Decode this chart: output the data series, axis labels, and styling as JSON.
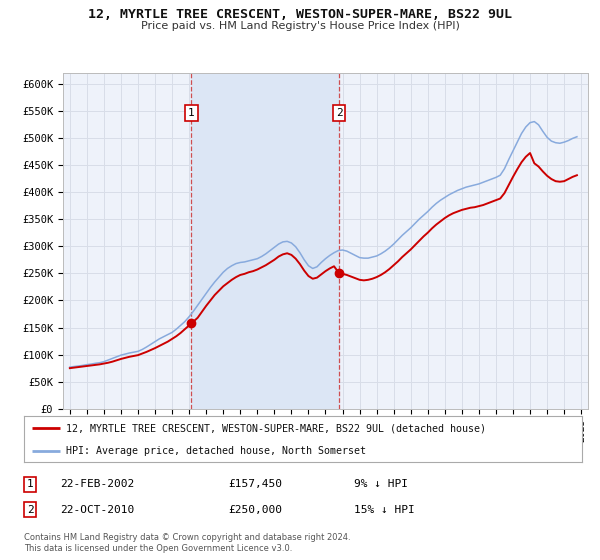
{
  "title": "12, MYRTLE TREE CRESCENT, WESTON-SUPER-MARE, BS22 9UL",
  "subtitle": "Price paid vs. HM Land Registry's House Price Index (HPI)",
  "background_color": "#ffffff",
  "plot_bg_color": "#eef2fa",
  "grid_color": "#d8dde8",
  "red_line_color": "#cc0000",
  "blue_line_color": "#88aadd",
  "sale1_price": 157450,
  "sale1_year": 2002.13,
  "sale2_price": 250000,
  "sale2_year": 2010.8,
  "vline_color": "#cc3333",
  "shade_color": "#dce6f5",
  "ylim": [
    0,
    620000
  ],
  "yticks": [
    0,
    50000,
    100000,
    150000,
    200000,
    250000,
    300000,
    350000,
    400000,
    450000,
    500000,
    550000,
    600000
  ],
  "ytick_labels": [
    "£0",
    "£50K",
    "£100K",
    "£150K",
    "£200K",
    "£250K",
    "£300K",
    "£350K",
    "£400K",
    "£450K",
    "£500K",
    "£550K",
    "£600K"
  ],
  "hpi_data": [
    [
      1995.0,
      77000
    ],
    [
      1995.25,
      78000
    ],
    [
      1995.5,
      79000
    ],
    [
      1995.75,
      80000
    ],
    [
      1996.0,
      81500
    ],
    [
      1996.25,
      82500
    ],
    [
      1996.5,
      84000
    ],
    [
      1996.75,
      85000
    ],
    [
      1997.0,
      87000
    ],
    [
      1997.25,
      90000
    ],
    [
      1997.5,
      93000
    ],
    [
      1997.75,
      96000
    ],
    [
      1998.0,
      99000
    ],
    [
      1998.25,
      101000
    ],
    [
      1998.5,
      103000
    ],
    [
      1998.75,
      104500
    ],
    [
      1999.0,
      106000
    ],
    [
      1999.25,
      109500
    ],
    [
      1999.5,
      114000
    ],
    [
      1999.75,
      119000
    ],
    [
      2000.0,
      124000
    ],
    [
      2000.25,
      129000
    ],
    [
      2000.5,
      133000
    ],
    [
      2000.75,
      137000
    ],
    [
      2001.0,
      141000
    ],
    [
      2001.25,
      147000
    ],
    [
      2001.5,
      154000
    ],
    [
      2001.75,
      161000
    ],
    [
      2002.0,
      170000
    ],
    [
      2002.25,
      180000
    ],
    [
      2002.5,
      191000
    ],
    [
      2002.75,
      202000
    ],
    [
      2003.0,
      213000
    ],
    [
      2003.25,
      224000
    ],
    [
      2003.5,
      234000
    ],
    [
      2003.75,
      243000
    ],
    [
      2004.0,
      252000
    ],
    [
      2004.25,
      259000
    ],
    [
      2004.5,
      264000
    ],
    [
      2004.75,
      268000
    ],
    [
      2005.0,
      270000
    ],
    [
      2005.25,
      271000
    ],
    [
      2005.5,
      273000
    ],
    [
      2005.75,
      275000
    ],
    [
      2006.0,
      277000
    ],
    [
      2006.25,
      281000
    ],
    [
      2006.5,
      286000
    ],
    [
      2006.75,
      292000
    ],
    [
      2007.0,
      298000
    ],
    [
      2007.25,
      304000
    ],
    [
      2007.5,
      308000
    ],
    [
      2007.75,
      309000
    ],
    [
      2008.0,
      306000
    ],
    [
      2008.25,
      299000
    ],
    [
      2008.5,
      288000
    ],
    [
      2008.75,
      275000
    ],
    [
      2009.0,
      264000
    ],
    [
      2009.25,
      259000
    ],
    [
      2009.5,
      262000
    ],
    [
      2009.75,
      270000
    ],
    [
      2010.0,
      277000
    ],
    [
      2010.25,
      283000
    ],
    [
      2010.5,
      288000
    ],
    [
      2010.75,
      292000
    ],
    [
      2011.0,
      293000
    ],
    [
      2011.25,
      291000
    ],
    [
      2011.5,
      287000
    ],
    [
      2011.75,
      283000
    ],
    [
      2012.0,
      279000
    ],
    [
      2012.25,
      278000
    ],
    [
      2012.5,
      278000
    ],
    [
      2012.75,
      280000
    ],
    [
      2013.0,
      282000
    ],
    [
      2013.25,
      286000
    ],
    [
      2013.5,
      291000
    ],
    [
      2013.75,
      297000
    ],
    [
      2014.0,
      304000
    ],
    [
      2014.25,
      312000
    ],
    [
      2014.5,
      320000
    ],
    [
      2014.75,
      327000
    ],
    [
      2015.0,
      334000
    ],
    [
      2015.25,
      342000
    ],
    [
      2015.5,
      350000
    ],
    [
      2015.75,
      357000
    ],
    [
      2016.0,
      364000
    ],
    [
      2016.25,
      372000
    ],
    [
      2016.5,
      379000
    ],
    [
      2016.75,
      385000
    ],
    [
      2017.0,
      390000
    ],
    [
      2017.25,
      395000
    ],
    [
      2017.5,
      399000
    ],
    [
      2017.75,
      403000
    ],
    [
      2018.0,
      406000
    ],
    [
      2018.25,
      409000
    ],
    [
      2018.5,
      411000
    ],
    [
      2018.75,
      413000
    ],
    [
      2019.0,
      415000
    ],
    [
      2019.25,
      418000
    ],
    [
      2019.5,
      421000
    ],
    [
      2019.75,
      424000
    ],
    [
      2020.0,
      427000
    ],
    [
      2020.25,
      431000
    ],
    [
      2020.5,
      443000
    ],
    [
      2020.75,
      460000
    ],
    [
      2021.0,
      476000
    ],
    [
      2021.25,
      492000
    ],
    [
      2021.5,
      508000
    ],
    [
      2021.75,
      520000
    ],
    [
      2022.0,
      528000
    ],
    [
      2022.25,
      530000
    ],
    [
      2022.5,
      524000
    ],
    [
      2022.75,
      512000
    ],
    [
      2023.0,
      501000
    ],
    [
      2023.25,
      494000
    ],
    [
      2023.5,
      491000
    ],
    [
      2023.75,
      490000
    ],
    [
      2024.0,
      492000
    ],
    [
      2024.25,
      495000
    ],
    [
      2024.5,
      499000
    ],
    [
      2024.75,
      502000
    ]
  ],
  "house_data": [
    [
      1995.0,
      75000
    ],
    [
      1995.25,
      76000
    ],
    [
      1995.5,
      77000
    ],
    [
      1995.75,
      78000
    ],
    [
      1996.0,
      79000
    ],
    [
      1996.25,
      80000
    ],
    [
      1996.5,
      81000
    ],
    [
      1996.75,
      82000
    ],
    [
      1997.0,
      83500
    ],
    [
      1997.25,
      85000
    ],
    [
      1997.5,
      87000
    ],
    [
      1997.75,
      89500
    ],
    [
      1998.0,
      92000
    ],
    [
      1998.25,
      94000
    ],
    [
      1998.5,
      96000
    ],
    [
      1998.75,
      97500
    ],
    [
      1999.0,
      99000
    ],
    [
      1999.25,
      102000
    ],
    [
      1999.5,
      105000
    ],
    [
      1999.75,
      108500
    ],
    [
      2000.0,
      112000
    ],
    [
      2000.25,
      116000
    ],
    [
      2000.5,
      120000
    ],
    [
      2000.75,
      124000
    ],
    [
      2001.0,
      129000
    ],
    [
      2001.25,
      134000
    ],
    [
      2001.5,
      140000
    ],
    [
      2001.75,
      147000
    ],
    [
      2002.13,
      157450
    ],
    [
      2002.5,
      168000
    ],
    [
      2002.75,
      179000
    ],
    [
      2003.0,
      190000
    ],
    [
      2003.25,
      200000
    ],
    [
      2003.5,
      210000
    ],
    [
      2003.75,
      218000
    ],
    [
      2004.0,
      226000
    ],
    [
      2004.25,
      232000
    ],
    [
      2004.5,
      238000
    ],
    [
      2004.75,
      243000
    ],
    [
      2005.0,
      247000
    ],
    [
      2005.25,
      249000
    ],
    [
      2005.5,
      252000
    ],
    [
      2005.75,
      254000
    ],
    [
      2006.0,
      257000
    ],
    [
      2006.25,
      261000
    ],
    [
      2006.5,
      265000
    ],
    [
      2006.75,
      270000
    ],
    [
      2007.0,
      275000
    ],
    [
      2007.25,
      281000
    ],
    [
      2007.5,
      285000
    ],
    [
      2007.75,
      287000
    ],
    [
      2008.0,
      284000
    ],
    [
      2008.25,
      277000
    ],
    [
      2008.5,
      267000
    ],
    [
      2008.75,
      255000
    ],
    [
      2009.0,
      245000
    ],
    [
      2009.25,
      240000
    ],
    [
      2009.5,
      242000
    ],
    [
      2009.75,
      248000
    ],
    [
      2010.0,
      254000
    ],
    [
      2010.25,
      259000
    ],
    [
      2010.5,
      263000
    ],
    [
      2010.8,
      250000
    ],
    [
      2011.0,
      249000
    ],
    [
      2011.25,
      247000
    ],
    [
      2011.5,
      244000
    ],
    [
      2011.75,
      241000
    ],
    [
      2012.0,
      238000
    ],
    [
      2012.25,
      237000
    ],
    [
      2012.5,
      238000
    ],
    [
      2012.75,
      240000
    ],
    [
      2013.0,
      243000
    ],
    [
      2013.25,
      247000
    ],
    [
      2013.5,
      252000
    ],
    [
      2013.75,
      258000
    ],
    [
      2014.0,
      265000
    ],
    [
      2014.25,
      272000
    ],
    [
      2014.5,
      280000
    ],
    [
      2014.75,
      287000
    ],
    [
      2015.0,
      294000
    ],
    [
      2015.25,
      302000
    ],
    [
      2015.5,
      310000
    ],
    [
      2015.75,
      318000
    ],
    [
      2016.0,
      325000
    ],
    [
      2016.25,
      333000
    ],
    [
      2016.5,
      340000
    ],
    [
      2016.75,
      346000
    ],
    [
      2017.0,
      352000
    ],
    [
      2017.25,
      357000
    ],
    [
      2017.5,
      361000
    ],
    [
      2017.75,
      364000
    ],
    [
      2018.0,
      367000
    ],
    [
      2018.25,
      369000
    ],
    [
      2018.5,
      371000
    ],
    [
      2018.75,
      372000
    ],
    [
      2019.0,
      374000
    ],
    [
      2019.25,
      376000
    ],
    [
      2019.5,
      379000
    ],
    [
      2019.75,
      382000
    ],
    [
      2020.0,
      385000
    ],
    [
      2020.25,
      388000
    ],
    [
      2020.5,
      398000
    ],
    [
      2020.75,
      413000
    ],
    [
      2021.0,
      428000
    ],
    [
      2021.25,
      442000
    ],
    [
      2021.5,
      455000
    ],
    [
      2021.75,
      465000
    ],
    [
      2022.0,
      472000
    ],
    [
      2022.25,
      453000
    ],
    [
      2022.5,
      447000
    ],
    [
      2022.75,
      438000
    ],
    [
      2023.0,
      430000
    ],
    [
      2023.25,
      424000
    ],
    [
      2023.5,
      420000
    ],
    [
      2023.75,
      419000
    ],
    [
      2024.0,
      420000
    ],
    [
      2024.25,
      424000
    ],
    [
      2024.5,
      428000
    ],
    [
      2024.75,
      431000
    ]
  ]
}
